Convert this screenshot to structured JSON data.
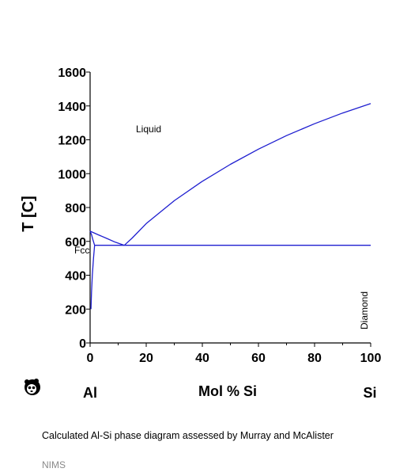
{
  "chart_data": {
    "type": "line",
    "ylabel": "T [C]",
    "xlabel": "Mol % Si",
    "xlim": [
      0,
      100
    ],
    "ylim": [
      0,
      1600
    ],
    "x_ticks": [
      "0",
      "20",
      "40",
      "60",
      "80",
      "100"
    ],
    "y_ticks": [
      "0",
      "200",
      "400",
      "600",
      "800",
      "1000",
      "1200",
      "1400",
      "1600"
    ],
    "endpoint_labels": {
      "left": "Al",
      "right": "Si"
    },
    "region_labels": {
      "liquid": "Liquid",
      "fcc": "Fcc",
      "diamond": "Diamond"
    },
    "line_color": "#1f1fd0",
    "grid": false,
    "series": [
      {
        "values": [
          [
            0,
            660
          ],
          [
            3,
            638
          ],
          [
            6,
            617
          ],
          [
            9,
            595
          ],
          [
            12.2,
            577
          ]
        ]
      },
      {
        "values": [
          [
            12.2,
            577
          ],
          [
            15,
            620
          ],
          [
            20,
            705
          ],
          [
            30,
            840
          ],
          [
            40,
            955
          ],
          [
            50,
            1055
          ],
          [
            60,
            1145
          ],
          [
            70,
            1225
          ],
          [
            80,
            1295
          ],
          [
            90,
            1358
          ],
          [
            100,
            1414
          ]
        ]
      },
      {
        "values": [
          [
            0,
            660
          ],
          [
            0.5,
            640
          ],
          [
            1.0,
            610
          ],
          [
            1.6,
            577
          ]
        ]
      },
      {
        "values": [
          [
            1.6,
            577
          ],
          [
            1.2,
            500
          ],
          [
            0.8,
            400
          ],
          [
            0.5,
            300
          ],
          [
            0.3,
            200
          ]
        ]
      },
      {
        "values": [
          [
            1.6,
            577
          ],
          [
            100,
            577
          ]
        ]
      }
    ]
  },
  "caption": "Calculated Al-Si phase diagram assessed by Murray and McAlister",
  "source": "NIMS",
  "logo_icon": "panda-logo-icon"
}
